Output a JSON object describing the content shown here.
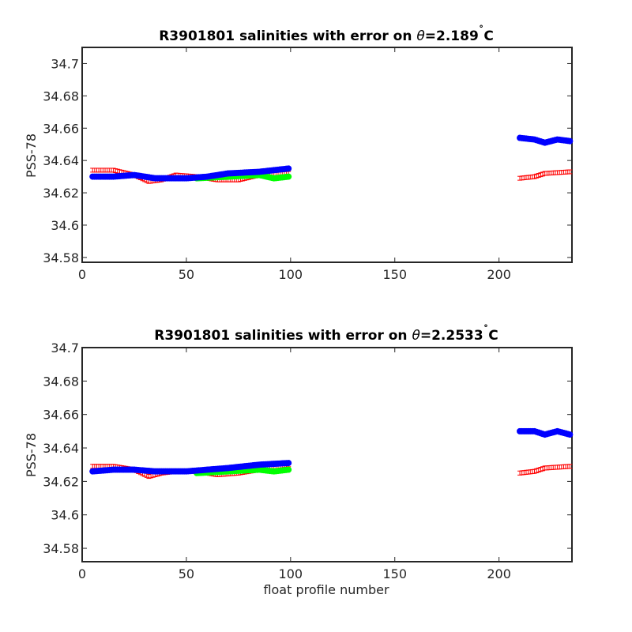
{
  "chart_data": [
    {
      "type": "scatter",
      "title": {
        "prefix": "R3901801 salinities with error on ",
        "theta": "θ",
        "suffix": "=2.189",
        "degree": "˚",
        "unit": "C"
      },
      "xlabel": "",
      "ylabel": "PSS-78",
      "xlim": [
        0,
        235
      ],
      "ylim": [
        34.577,
        34.71
      ],
      "xticks": [
        0,
        50,
        100,
        150,
        200
      ],
      "yticks": [
        34.58,
        34.6,
        34.62,
        34.64,
        34.66,
        34.68,
        34.7
      ],
      "ytick_labels": [
        "34.58",
        "34.6",
        "34.62",
        "34.64",
        "34.66",
        "34.68",
        "34.7"
      ],
      "colors": {
        "blue": "#0000ff",
        "red": "#ff0000",
        "green": "#00ff00"
      },
      "series": [
        {
          "color": "blue",
          "marker": "filled-circle",
          "segments": [
            {
              "x_start": 5,
              "x_end": 99,
              "anchors": [
                [
                  5,
                  34.63
                ],
                [
                  15,
                  34.63
                ],
                [
                  25,
                  34.631
                ],
                [
                  35,
                  34.629
                ],
                [
                  50,
                  34.629
                ],
                [
                  60,
                  34.63
                ],
                [
                  70,
                  34.632
                ],
                [
                  85,
                  34.633
                ],
                [
                  99,
                  34.635
                ]
              ]
            },
            {
              "x_start": 210,
              "x_end": 234,
              "anchors": [
                [
                  210,
                  34.654
                ],
                [
                  217,
                  34.653
                ],
                [
                  222,
                  34.651
                ],
                [
                  228,
                  34.653
                ],
                [
                  234,
                  34.652
                ]
              ]
            }
          ]
        },
        {
          "color": "green",
          "marker": "filled-circle",
          "segments": [
            {
              "x_start": 55,
              "x_end": 99,
              "anchors": [
                [
                  55,
                  34.629
                ],
                [
                  70,
                  34.63
                ],
                [
                  85,
                  34.631
                ],
                [
                  92,
                  34.629
                ],
                [
                  99,
                  34.63
                ]
              ]
            }
          ]
        },
        {
          "color": "red",
          "marker": "errorbar",
          "error": 0.0012,
          "segments": [
            {
              "x_start": 5,
              "x_end": 99,
              "anchors": [
                [
                  5,
                  34.634
                ],
                [
                  15,
                  34.634
                ],
                [
                  25,
                  34.631
                ],
                [
                  32,
                  34.627
                ],
                [
                  38,
                  34.628
                ],
                [
                  45,
                  34.631
                ],
                [
                  55,
                  34.63
                ],
                [
                  65,
                  34.628
                ],
                [
                  75,
                  34.628
                ],
                [
                  85,
                  34.631
                ],
                [
                  99,
                  34.632
                ]
              ]
            },
            {
              "x_start": 210,
              "x_end": 234,
              "anchors": [
                [
                  210,
                  34.629
                ],
                [
                  217,
                  34.63
                ],
                [
                  222,
                  34.632
                ],
                [
                  234,
                  34.633
                ]
              ]
            }
          ]
        }
      ]
    },
    {
      "type": "scatter",
      "title": {
        "prefix": "R3901801 salinities with error on ",
        "theta": "θ",
        "suffix": "=2.2533",
        "degree": "˚",
        "unit": "C"
      },
      "xlabel": "float profile number",
      "ylabel": "PSS-78",
      "xlim": [
        0,
        235
      ],
      "ylim": [
        34.572,
        34.7
      ],
      "xticks": [
        0,
        50,
        100,
        150,
        200
      ],
      "yticks": [
        34.58,
        34.6,
        34.62,
        34.64,
        34.66,
        34.68,
        34.7
      ],
      "ytick_labels": [
        "34.58",
        "34.6",
        "34.62",
        "34.64",
        "34.66",
        "34.68",
        "34.7"
      ],
      "colors": {
        "blue": "#0000ff",
        "red": "#ff0000",
        "green": "#00ff00"
      },
      "series": [
        {
          "color": "blue",
          "marker": "filled-circle",
          "segments": [
            {
              "x_start": 5,
              "x_end": 99,
              "anchors": [
                [
                  5,
                  34.626
                ],
                [
                  15,
                  34.627
                ],
                [
                  25,
                  34.627
                ],
                [
                  35,
                  34.626
                ],
                [
                  50,
                  34.626
                ],
                [
                  60,
                  34.627
                ],
                [
                  70,
                  34.628
                ],
                [
                  85,
                  34.63
                ],
                [
                  99,
                  34.631
                ]
              ]
            },
            {
              "x_start": 210,
              "x_end": 234,
              "anchors": [
                [
                  210,
                  34.65
                ],
                [
                  217,
                  34.65
                ],
                [
                  222,
                  34.648
                ],
                [
                  228,
                  34.65
                ],
                [
                  234,
                  34.648
                ]
              ]
            }
          ]
        },
        {
          "color": "green",
          "marker": "filled-circle",
          "segments": [
            {
              "x_start": 55,
              "x_end": 99,
              "anchors": [
                [
                  55,
                  34.625
                ],
                [
                  70,
                  34.626
                ],
                [
                  85,
                  34.627
                ],
                [
                  92,
                  34.626
                ],
                [
                  99,
                  34.627
                ]
              ]
            }
          ]
        },
        {
          "color": "red",
          "marker": "errorbar",
          "error": 0.0012,
          "segments": [
            {
              "x_start": 5,
              "x_end": 99,
              "anchors": [
                [
                  5,
                  34.629
                ],
                [
                  15,
                  34.629
                ],
                [
                  25,
                  34.627
                ],
                [
                  32,
                  34.623
                ],
                [
                  38,
                  34.625
                ],
                [
                  45,
                  34.626
                ],
                [
                  55,
                  34.626
                ],
                [
                  65,
                  34.624
                ],
                [
                  75,
                  34.625
                ],
                [
                  85,
                  34.627
                ],
                [
                  99,
                  34.63
                ]
              ]
            },
            {
              "x_start": 210,
              "x_end": 234,
              "anchors": [
                [
                  210,
                  34.625
                ],
                [
                  217,
                  34.626
                ],
                [
                  222,
                  34.628
                ],
                [
                  234,
                  34.629
                ]
              ]
            }
          ]
        }
      ]
    }
  ]
}
